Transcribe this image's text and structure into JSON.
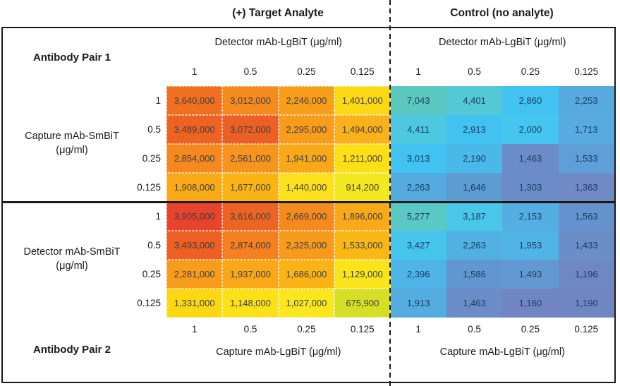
{
  "titles": {
    "target": "(+) Target Analyte",
    "control": "Control (no analyte)"
  },
  "sections": {
    "pair1_label": "Antibody Pair 1",
    "pair2_label": "Antibody Pair 2"
  },
  "axes": {
    "tick_labels": [
      "1",
      "0.5",
      "0.25",
      "0.125"
    ],
    "pair1_col_header": "Detector mAb-LgBiT (μg/ml)",
    "pair2_col_footer": "Capture mAb-LgBiT (μg/ml)",
    "pair1_row_header": [
      "Capture mAb-SmBiT",
      "(μg/ml)"
    ],
    "pair2_row_header": [
      "Detector mAb-SmBiT",
      "(μg/ml)"
    ]
  },
  "chart_data": {
    "type": "heatmap",
    "layout": "2 antibody pairs (rows) x 2 conditions (columns), shared red-orange-yellow (high) to cyan-blue (low) color scale, dotted cell borders on target side, dashed divider between conditions",
    "columns": [
      1,
      0.5,
      0.25,
      0.125
    ],
    "rows": [
      1,
      0.5,
      0.25,
      0.125
    ],
    "quadrants": [
      {
        "id": "t1",
        "pair": "Antibody Pair 1",
        "condition": "(+) Target Analyte",
        "row_axis": "Capture mAb-SmBiT (μg/ml)",
        "col_axis": "Detector mAb-LgBiT (μg/ml)",
        "dotted": true,
        "text_color": "#3F3F3F",
        "values": [
          [
            3640000,
            3012000,
            2246000,
            1401000
          ],
          [
            3489000,
            3072000,
            2295000,
            1494000
          ],
          [
            2854000,
            2561000,
            1941000,
            1211000
          ],
          [
            1908000,
            1677000,
            1440000,
            914200
          ]
        ],
        "labels": [
          [
            "3,640,000",
            "3,012,000",
            "2,246,000",
            "1,401,000"
          ],
          [
            "3,489,000",
            "3,072,000",
            "2,295,000",
            "1,494,000"
          ],
          [
            "2,854,000",
            "2,561,000",
            "1,941,000",
            "1,211,000"
          ],
          [
            "1,908,000",
            "1,677,000",
            "1,440,000",
            "914,200"
          ]
        ],
        "colors": [
          [
            "#F0701F",
            "#F58A1E",
            "#F99E1B",
            "#FCD915"
          ],
          [
            "#EE6322",
            "#EC5F25",
            "#F89C1C",
            "#FAB11B"
          ],
          [
            "#F5891F",
            "#F7941D",
            "#F9A818",
            "#FCDF17"
          ],
          [
            "#FAAA17",
            "#FBB414",
            "#FCE11C",
            "#F3E821"
          ]
        ]
      },
      {
        "id": "c1",
        "pair": "Antibody Pair 1",
        "condition": "Control (no analyte)",
        "row_axis": "Capture mAb-SmBiT (μg/ml)",
        "col_axis": "Detector mAb-LgBiT (μg/ml)",
        "dotted": false,
        "text_color": "#1C3E63",
        "values": [
          [
            7043,
            4401,
            2860,
            2253
          ],
          [
            4411,
            2913,
            2000,
            1713
          ],
          [
            3013,
            2190,
            1463,
            1533
          ],
          [
            2263,
            1646,
            1303,
            1363
          ]
        ],
        "labels": [
          [
            "7,043",
            "4,401",
            "2,860",
            "2,253"
          ],
          [
            "4,411",
            "2,913",
            "2,000",
            "1,713"
          ],
          [
            "3,013",
            "2,190",
            "1,463",
            "1,533"
          ],
          [
            "2,263",
            "1,646",
            "1,303",
            "1,363"
          ]
        ],
        "colors": [
          [
            "#5AC8BE",
            "#53C9D6",
            "#41C2F0",
            "#58A9DE"
          ],
          [
            "#4EC7E0",
            "#41C2F0",
            "#45C6F1",
            "#57ABE1"
          ],
          [
            "#41C2F0",
            "#4AB8E9",
            "#6B8CC8",
            "#5F9FD8"
          ],
          [
            "#55AAE0",
            "#5D9BD3",
            "#6B8CC8",
            "#6F8AC5"
          ]
        ]
      },
      {
        "id": "t2",
        "pair": "Antibody Pair 2",
        "condition": "(+) Target Analyte",
        "row_axis": "Detector mAb-SmBiT (μg/ml)",
        "col_axis": "Capture mAb-LgBiT (μg/ml)",
        "dotted": true,
        "text_color": "#3F3F3F",
        "values": [
          [
            3905000,
            3616000,
            2669000,
            1896000
          ],
          [
            3493000,
            2874000,
            2325000,
            1533000
          ],
          [
            2281000,
            1937000,
            1686000,
            1129000
          ],
          [
            1331000,
            1148000,
            1027000,
            675900
          ]
        ],
        "labels": [
          [
            "3,905,000",
            "3,616,000",
            "2,669,000",
            "1,896,000"
          ],
          [
            "3,493,000",
            "2,874,000",
            "2,325,000",
            "1,533,000"
          ],
          [
            "2,281,000",
            "1,937,000",
            "1,686,000",
            "1,129,000"
          ],
          [
            "1,331,000",
            "1,148,000",
            "1,027,000",
            "675,900"
          ]
        ],
        "colors": [
          [
            "#E8442B",
            "#EE6424",
            "#F58A1E",
            "#FAA918"
          ],
          [
            "#ED5F23",
            "#F4801F",
            "#F89A1C",
            "#FBB815"
          ],
          [
            "#F89C1B",
            "#FAA818",
            "#FBB316",
            "#FCE41A"
          ],
          [
            "#FCD813",
            "#FCE018",
            "#FCE71E",
            "#D6DF26"
          ]
        ]
      },
      {
        "id": "c2",
        "pair": "Antibody Pair 2",
        "condition": "Control (no analyte)",
        "row_axis": "Detector mAb-SmBiT (μg/ml)",
        "col_axis": "Capture mAb-LgBiT (μg/ml)",
        "dotted": false,
        "text_color": "#1C3E63",
        "values": [
          [
            5277,
            3187,
            2153,
            1563
          ],
          [
            3427,
            2263,
            1953,
            1433
          ],
          [
            2396,
            1586,
            1493,
            1196
          ],
          [
            1913,
            1463,
            1160,
            1190
          ]
        ],
        "labels": [
          [
            "5,277",
            "3,187",
            "2,153",
            "1,563"
          ],
          [
            "3,427",
            "2,263",
            "1,953",
            "1,433"
          ],
          [
            "2,396",
            "1,586",
            "1,493",
            "1,196"
          ],
          [
            "1,913",
            "1,463",
            "1,160",
            "1,190"
          ]
        ],
        "colors": [
          [
            "#5AC8C4",
            "#49C6E8",
            "#55AEE2",
            "#6493CD"
          ],
          [
            "#45C5EC",
            "#52B0E2",
            "#50B4E6",
            "#6B8DC8"
          ],
          [
            "#4FB4E8",
            "#6196D0",
            "#6299D2",
            "#6F88C4"
          ],
          [
            "#54ACE0",
            "#6B8CC7",
            "#7085C2",
            "#7086C3"
          ]
        ]
      }
    ]
  }
}
